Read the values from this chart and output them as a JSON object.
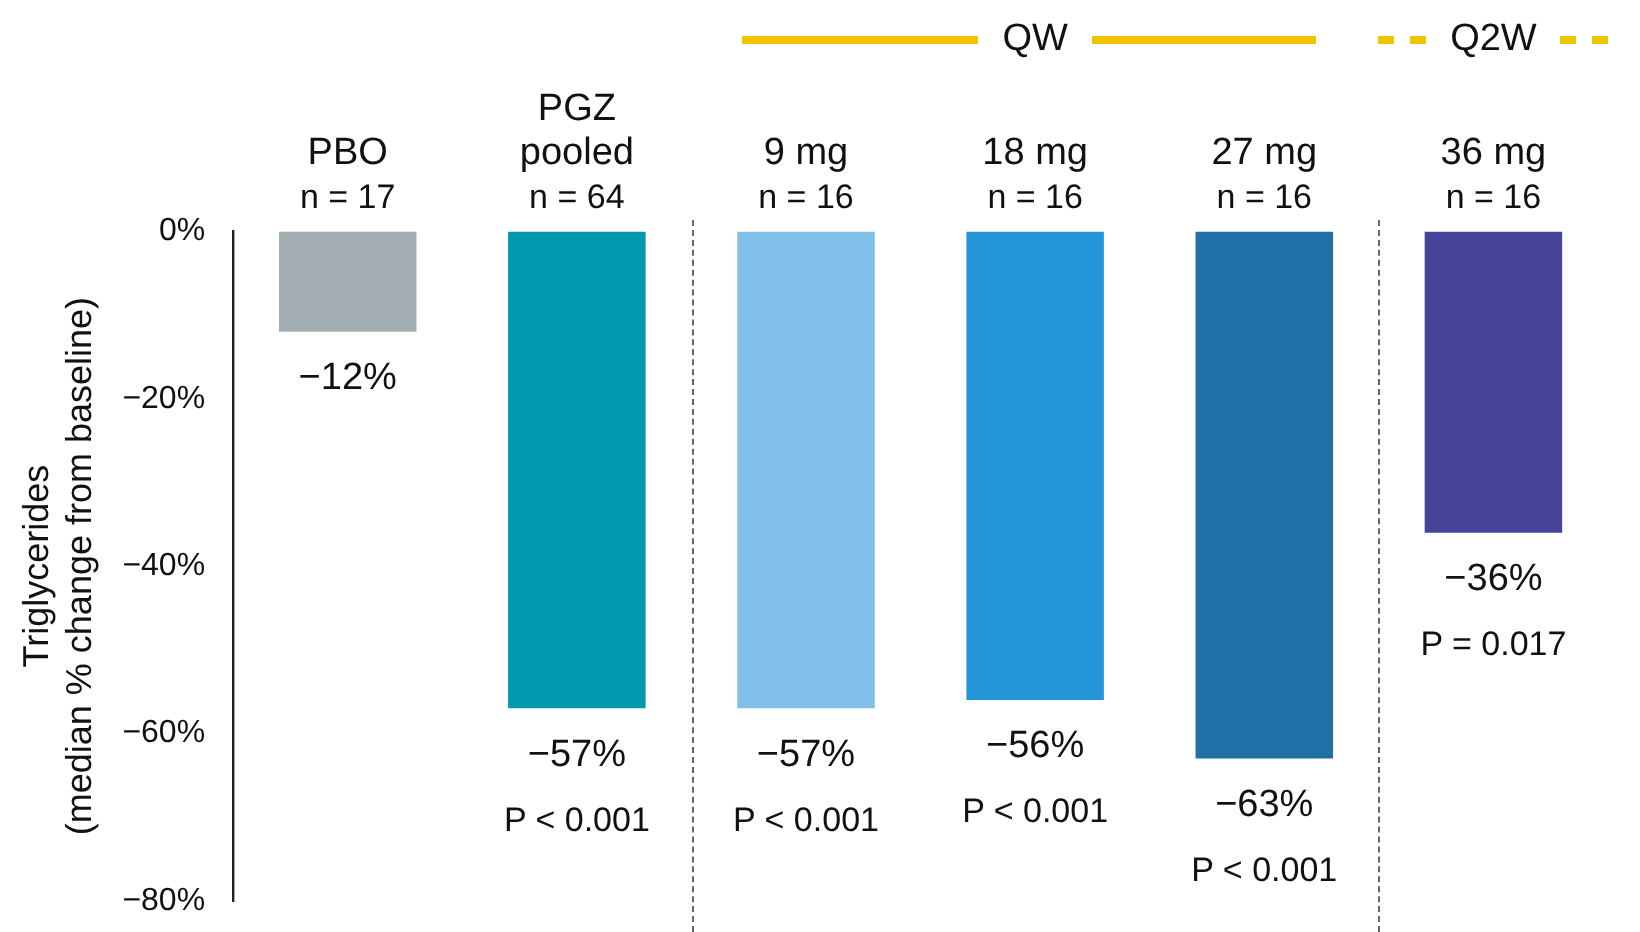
{
  "chart_data": {
    "type": "bar",
    "ylabel": "Triglycerides\n(median % change from baseline)",
    "categories": [
      "PBO",
      "PGZ pooled",
      "9 mg",
      "18 mg",
      "27 mg",
      "36 mg"
    ],
    "values": [
      -12,
      -57,
      -57,
      -56,
      -63,
      -36
    ],
    "colors": [
      "#a2adb3",
      "#009aaf",
      "#7fbfe8",
      "#2595da",
      "#2070a8",
      "#45439a"
    ],
    "value_labels": [
      "−12%",
      "−57%",
      "−57%",
      "−56%",
      "−63%",
      "−36%"
    ],
    "ylim": [
      -80,
      0
    ],
    "yticks": [
      {
        "value": 0,
        "label": "0%"
      },
      {
        "value": -20,
        "label": "−20%"
      },
      {
        "value": -40,
        "label": "−40%"
      },
      {
        "value": -60,
        "label": "−60%"
      },
      {
        "value": -80,
        "label": "−80%"
      }
    ],
    "grid": false,
    "legend": false,
    "annotations": [
      "QW",
      "Q2W",
      "n = 17",
      "n = 64",
      "n = 16",
      "n = 16",
      "n = 16",
      "n = 16",
      {
        "text": "P < 0.001",
        "x": "PGZ pooled",
        "y": -57
      },
      {
        "text": "P < 0.001",
        "x": "9 mg",
        "y": -57
      },
      {
        "text": "P < 0.001",
        "x": "18 mg",
        "y": -56
      },
      {
        "text": "P < 0.001",
        "x": "27 mg",
        "y": -63
      },
      {
        "text": "P = 0.017",
        "x": "36 mg",
        "y": -36
      }
    ]
  }
}
